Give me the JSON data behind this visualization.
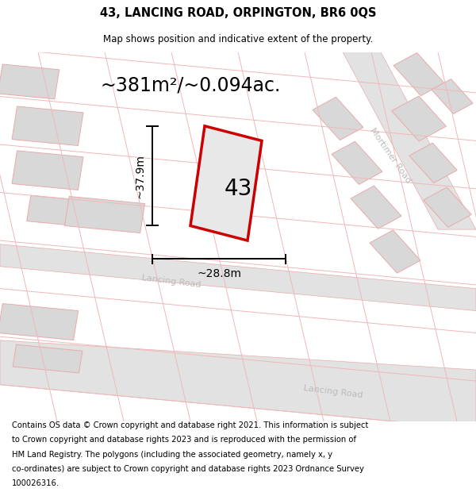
{
  "title": "43, LANCING ROAD, ORPINGTON, BR6 0QS",
  "subtitle": "Map shows position and indicative extent of the property.",
  "area_text": "~381m²/~0.094ac.",
  "dim_width": "~28.8m",
  "dim_height": "~37.9m",
  "plot_number": "43",
  "footer": "Contains OS data © Crown copyright and database right 2021. This information is subject to Crown copyright and database rights 2023 and is reproduced with the permission of HM Land Registry. The polygons (including the associated geometry, namely x, y co-ordinates) are subject to Crown copyright and database rights 2023 Ordnance Survey 100026316.",
  "bg_color": "#ffffff",
  "map_bg": "#f9f9f9",
  "road_fill": "#e2e2e2",
  "road_edge": "#e8aaaa",
  "block_fill": "#d8d8d8",
  "block_edge": "#e8aaaa",
  "pink_line": "#f0b8b8",
  "plot_fill": "#e8e8e8",
  "plot_edge": "#cc0000",
  "dim_color": "#000000",
  "label_color": "#bbbbbb",
  "text_color": "#000000",
  "title_fontsize": 10.5,
  "subtitle_fontsize": 8.5,
  "area_fontsize": 17,
  "plot_number_fontsize": 20,
  "footer_fontsize": 7.2,
  "dim_fontsize": 10,
  "street_fontsize": 8
}
